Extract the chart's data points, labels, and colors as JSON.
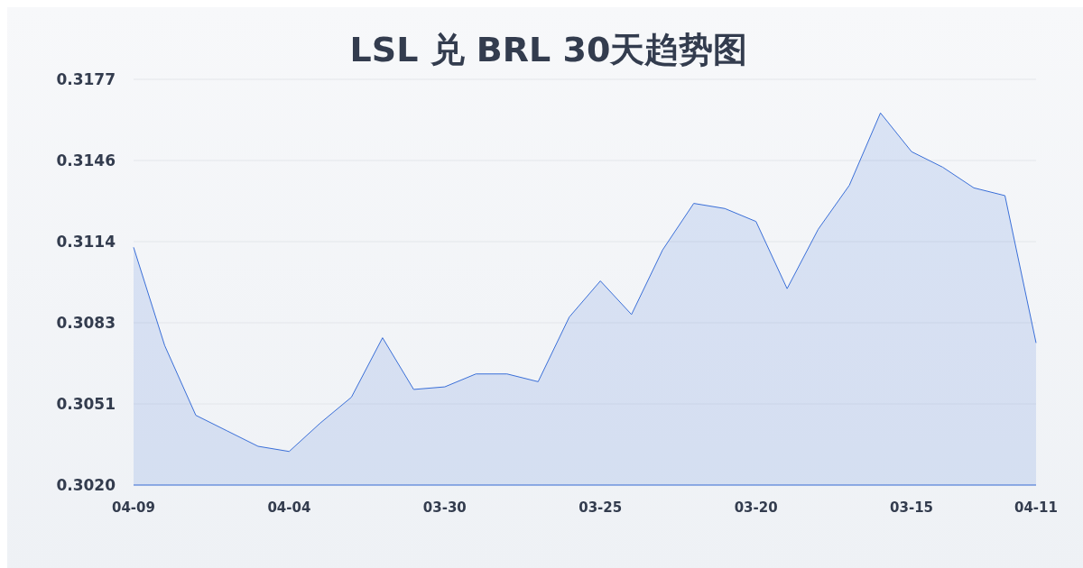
{
  "chart_data": {
    "type": "area",
    "title": "LSL 兑 BRL 30天趋势图",
    "categories": [
      "04-09",
      null,
      null,
      null,
      null,
      "04-04",
      null,
      null,
      null,
      null,
      "03-30",
      null,
      null,
      null,
      null,
      "03-25",
      null,
      null,
      null,
      null,
      "03-20",
      null,
      null,
      null,
      null,
      "03-15",
      null,
      null,
      null,
      "04-11"
    ],
    "series": [
      {
        "color": "#3a6fd8",
        "values": [
          0.3112,
          0.3074,
          0.3047,
          0.3041,
          0.3035,
          0.3033,
          0.3044,
          0.3054,
          0.3077,
          0.3057,
          0.3058,
          0.3063,
          0.3063,
          0.306,
          0.3085,
          0.3099,
          0.3086,
          0.3111,
          0.3129,
          0.3127,
          0.3122,
          0.3096,
          0.3119,
          0.3136,
          0.3164,
          0.3149,
          0.3143,
          0.3135,
          0.3132,
          0.3075
        ]
      }
    ],
    "ylim": [
      0.302,
      0.3177
    ],
    "yticks": [
      {
        "value": 0.302,
        "label": "0.3020"
      },
      {
        "value": 0.30514,
        "label": "0.3051"
      },
      {
        "value": 0.30828,
        "label": "0.3083"
      },
      {
        "value": 0.31142,
        "label": "0.3114"
      },
      {
        "value": 0.31456,
        "label": "0.3146"
      },
      {
        "value": 0.3177,
        "label": "0.3177"
      }
    ],
    "grid": "y"
  }
}
